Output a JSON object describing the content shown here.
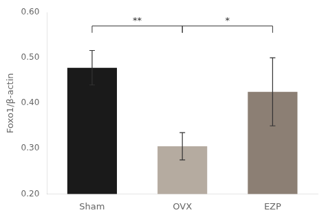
{
  "chart_data": {
    "type": "bar",
    "categories": [
      "Sham",
      "OVX",
      "EZP"
    ],
    "values": [
      0.478,
      0.305,
      0.425
    ],
    "errors": [
      0.038,
      0.03,
      0.075
    ],
    "colors": [
      "#1a1a1a",
      "#b5aba0",
      "#8c7f74"
    ],
    "ylabel": "Foxo1/β-actin",
    "ylim": [
      0.2,
      0.6
    ],
    "yticks": [
      {
        "value": 0.2,
        "label": "0.20"
      },
      {
        "value": 0.3,
        "label": "0.30"
      },
      {
        "value": 0.4,
        "label": "0.40"
      },
      {
        "value": 0.5,
        "label": "0.50"
      },
      {
        "value": 0.6,
        "label": "0.60"
      }
    ],
    "annotations": [
      {
        "from": "Sham",
        "to": "OVX",
        "y": 0.57,
        "y_tick": 0.555,
        "label": "**"
      },
      {
        "from": "OVX",
        "to": "EZP",
        "y": 0.57,
        "y_tick": 0.555,
        "label": "*"
      }
    ],
    "grid": false,
    "legend": false
  }
}
